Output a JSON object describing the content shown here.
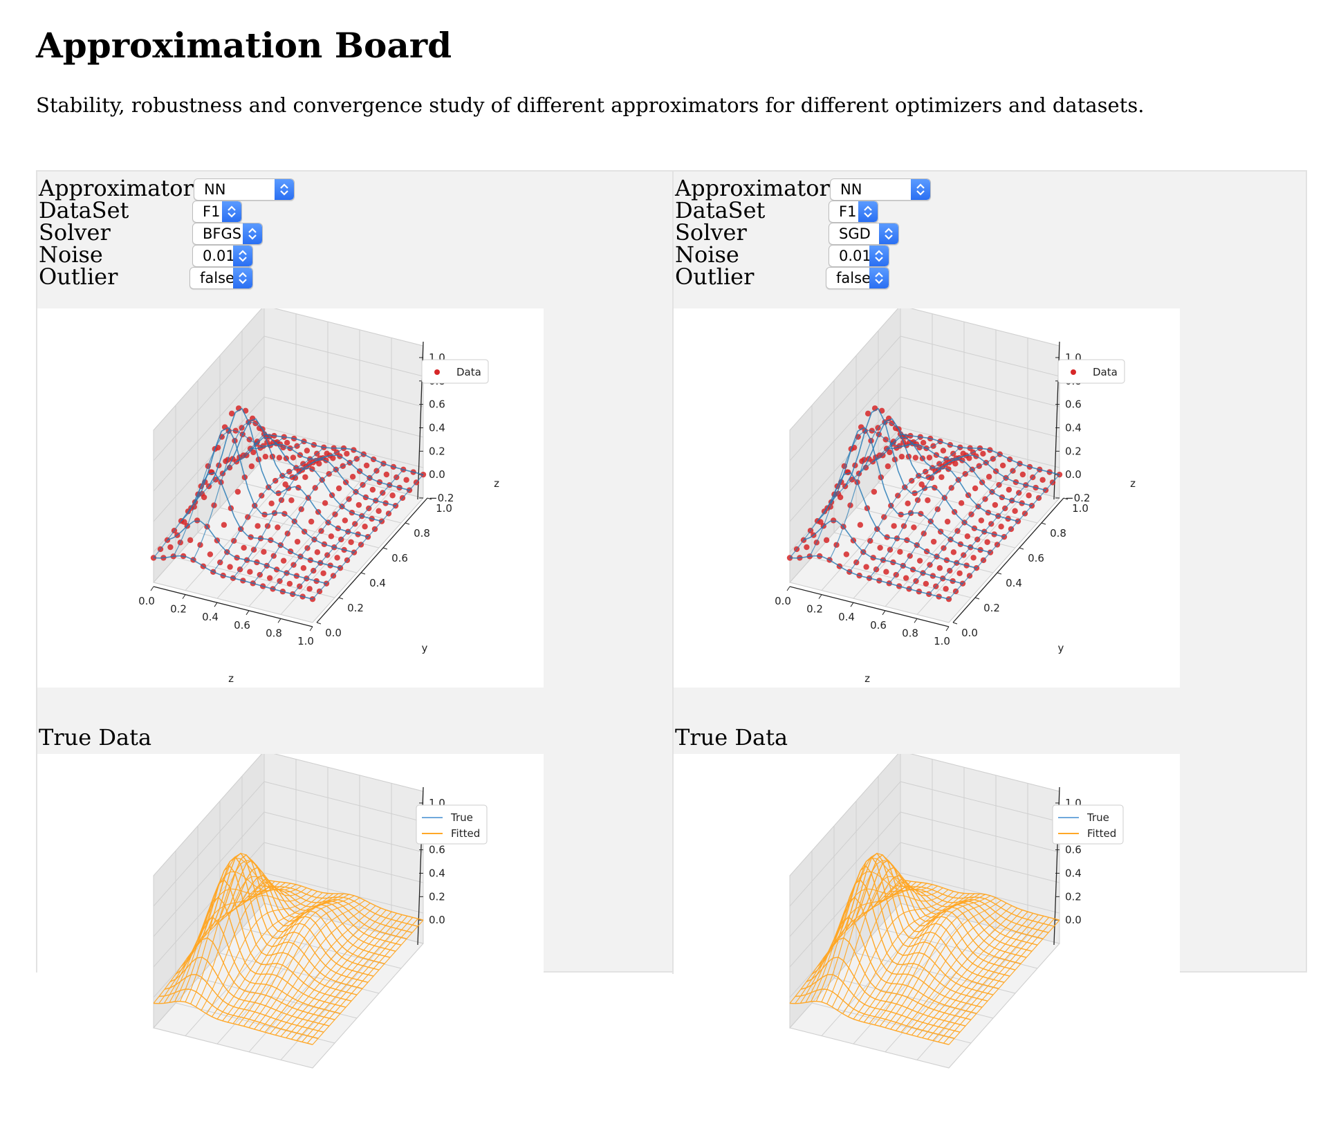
{
  "page": {
    "title": "Approximation Board",
    "subtitle": "Stability, robustness and convergence study of different approximators for different optimizers and datasets."
  },
  "labels": {
    "approximator": "Approximator",
    "dataset": "DataSet",
    "solver": "Solver",
    "noise": "Noise",
    "outlier": "Outlier",
    "true_data": "True Data"
  },
  "panels": [
    {
      "approximator": "NN",
      "dataset": "F1",
      "solver": "BFGS",
      "noise": "0.01",
      "outlier": "false"
    },
    {
      "approximator": "NN",
      "dataset": "F1",
      "solver": "SGD",
      "noise": "0.01",
      "outlier": "false"
    }
  ],
  "colors": {
    "data_points": "#d62728",
    "surface_blue": "#1f77b4",
    "fitted": "#ffa726",
    "true_line": "#6fa8dc",
    "select_accent": "#2a6ff2"
  },
  "chart_data": [
    {
      "type": "scatter",
      "subtype": "3d-surface",
      "legend": [
        "Data"
      ],
      "legend_position": "top-right",
      "xlabel": "z",
      "ylabel": "y",
      "zlabel": "z",
      "x_ticks": [
        "0.0",
        "0.2",
        "0.4",
        "0.6",
        "0.8",
        "1.0"
      ],
      "y_ticks": [
        "0.0",
        "0.2",
        "0.4",
        "0.6",
        "0.8",
        "1.0"
      ],
      "z_ticks": [
        "−0.2",
        "0.0",
        "0.2",
        "0.4",
        "0.6",
        "0.8",
        "1.0"
      ],
      "xlim": [
        0,
        1
      ],
      "ylim": [
        0,
        1
      ],
      "zlim": [
        -0.2,
        1.1
      ]
    },
    {
      "type": "line",
      "subtype": "3d-wireframe",
      "legend": [
        "True",
        "Fitted"
      ],
      "legend_position": "top-right",
      "z_ticks": [
        "0.0",
        "0.2",
        "0.4",
        "0.6",
        "0.8",
        "1.0"
      ],
      "zlim": [
        -0.2,
        1.1
      ]
    }
  ]
}
